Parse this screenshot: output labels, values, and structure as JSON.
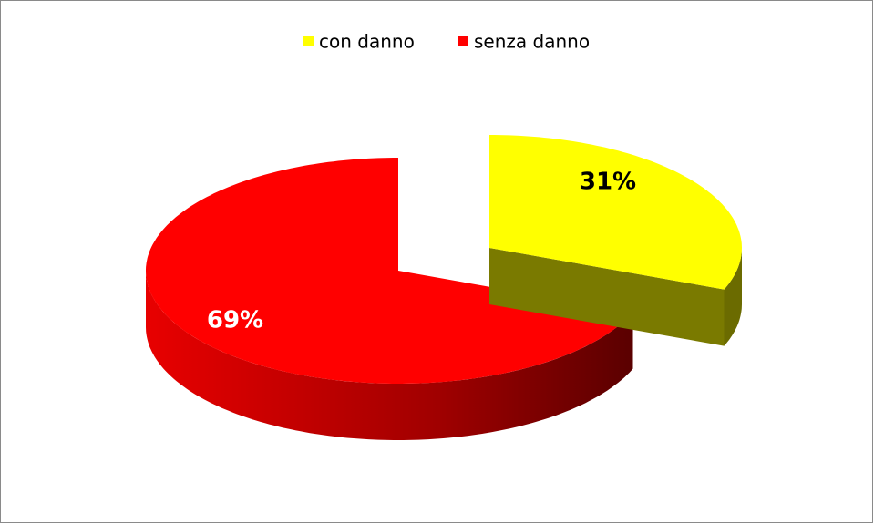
{
  "chart_data": {
    "type": "pie",
    "categories": [
      "con danno",
      "senza danno"
    ],
    "values": [
      31,
      69
    ],
    "value_labels": [
      "31%",
      "69%"
    ],
    "colors": [
      "#ffff00",
      "#ff0000"
    ],
    "legend": "top"
  }
}
